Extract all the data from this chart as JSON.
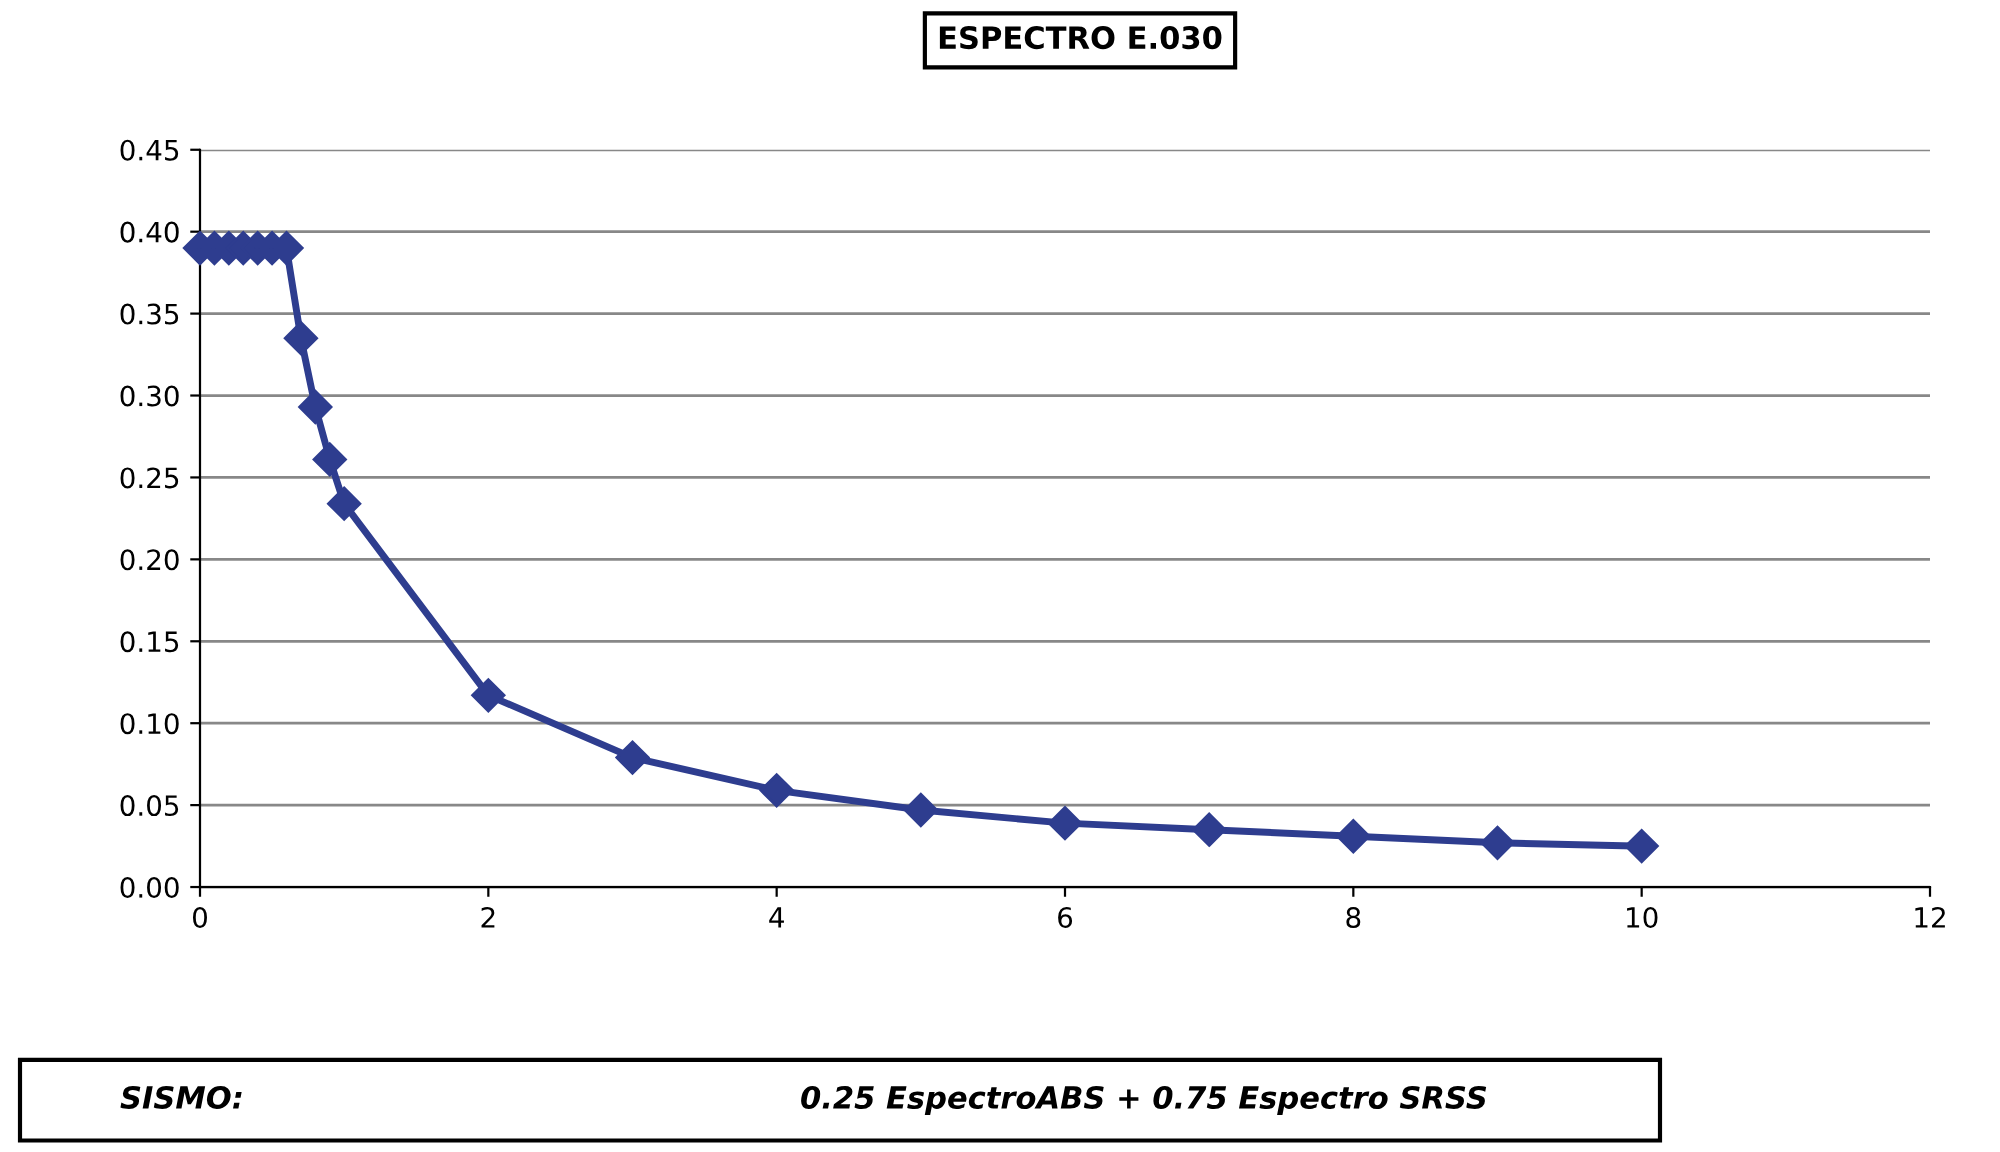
{
  "chart_data": {
    "type": "line",
    "title": "ESPECTRO E.030",
    "x": [
      0,
      0.1,
      0.2,
      0.3,
      0.4,
      0.5,
      0.6,
      0.7,
      0.8,
      0.9,
      1,
      2,
      3,
      4,
      5,
      6,
      7,
      8,
      9,
      10
    ],
    "series": [
      {
        "color": "#2e3d8f",
        "values": [
          0.39,
          0.39,
          0.39,
          0.39,
          0.39,
          0.39,
          0.39,
          0.335,
          0.293,
          0.261,
          0.234,
          0.117,
          0.079,
          0.059,
          0.047,
          0.039,
          0.035,
          0.031,
          0.027,
          0.025
        ]
      }
    ],
    "xlim": [
      0,
      12
    ],
    "xticks": [
      0,
      2,
      4,
      6,
      8,
      10,
      12
    ],
    "ylim": [
      0,
      0.45
    ],
    "yticks": [
      {
        "value": 0,
        "label": "0.00"
      },
      {
        "value": 0.05,
        "label": "0.05"
      },
      {
        "value": 0.1,
        "label": "0.10"
      },
      {
        "value": 0.15,
        "label": "0.15"
      },
      {
        "value": 0.2,
        "label": "0.20"
      },
      {
        "value": 0.25,
        "label": "0.25"
      },
      {
        "value": 0.3,
        "label": "0.30"
      },
      {
        "value": 0.35,
        "label": "0.35"
      },
      {
        "value": 0.4,
        "label": "0.40"
      },
      {
        "value": 0.45,
        "label": "0.45"
      }
    ],
    "grid": "y",
    "marker": "diamond",
    "line_style": "solid",
    "annotations": [
      "SISMO:",
      "0.25 EspectroABS + 0.75 Espectro SRSS"
    ]
  }
}
